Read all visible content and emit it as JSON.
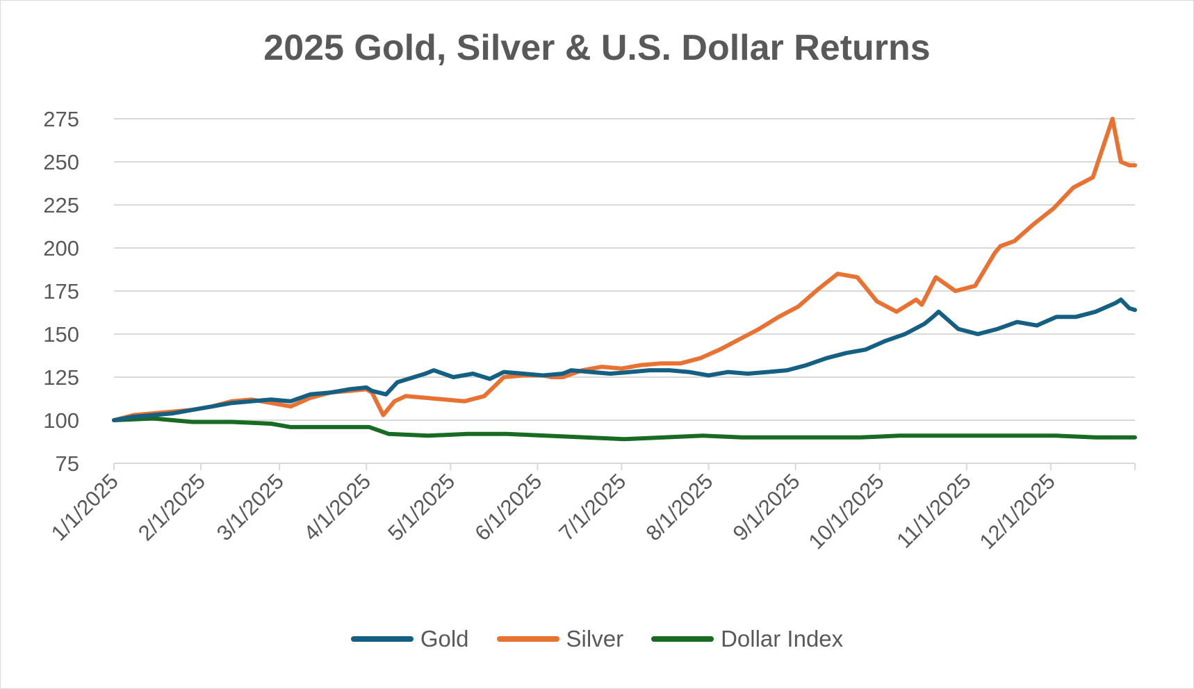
{
  "chart_data": {
    "type": "line",
    "title": "2025 Gold, Silver & U.S. Dollar Returns",
    "xlabel": "",
    "ylabel": "",
    "ylim": [
      75,
      275
    ],
    "yticks": [
      "75",
      "100",
      "125",
      "150",
      "175",
      "200",
      "225",
      "250",
      "275"
    ],
    "xlim": [
      "1/1/2025",
      "12/31/2025"
    ],
    "xticks": [
      "1/1/2025",
      "2/1/2025",
      "3/1/2025",
      "4/1/2025",
      "5/1/2025",
      "6/1/2025",
      "7/1/2025",
      "8/1/2025",
      "9/1/2025",
      "10/1/2025",
      "11/1/2025",
      "12/1/2025"
    ],
    "grid": "horizontal",
    "legend_position": "bottom",
    "series": [
      {
        "name": "Gold",
        "color": "#156082",
        "x": [
          "1/1/2025",
          "1/8/2025",
          "1/15/2025",
          "1/22/2025",
          "1/29/2025",
          "2/5/2025",
          "2/12/2025",
          "2/19/2025",
          "2/26/2025",
          "3/5/2025",
          "3/12/2025",
          "3/19/2025",
          "3/26/2025",
          "4/1/2025",
          "4/3/2025",
          "4/8/2025",
          "4/12/2025",
          "4/22/2025",
          "4/25/2025",
          "5/2/2025",
          "5/9/2025",
          "5/15/2025",
          "5/20/2025",
          "5/27/2025",
          "6/3/2025",
          "6/10/2025",
          "6/13/2025",
          "6/20/2025",
          "6/27/2025",
          "7/4/2025",
          "7/11/2025",
          "7/18/2025",
          "7/25/2025",
          "8/1/2025",
          "8/8/2025",
          "8/15/2025",
          "8/22/2025",
          "8/29/2025",
          "9/5/2025",
          "9/12/2025",
          "9/19/2025",
          "9/26/2025",
          "10/3/2025",
          "10/10/2025",
          "10/17/2025",
          "10/20/2025",
          "10/22/2025",
          "10/29/2025",
          "11/5/2025",
          "11/12/2025",
          "11/19/2025",
          "11/26/2025",
          "12/3/2025",
          "12/10/2025",
          "12/17/2025",
          "12/24/2025",
          "12/26/2025",
          "12/29/2025",
          "12/31/2025"
        ],
        "values": [
          100,
          102,
          103,
          104,
          106,
          108,
          110,
          111,
          112,
          111,
          115,
          116,
          118,
          119,
          117,
          115,
          122,
          127,
          129,
          125,
          127,
          124,
          128,
          127,
          126,
          127,
          129,
          128,
          127,
          128,
          129,
          129,
          128,
          126,
          128,
          127,
          128,
          129,
          132,
          136,
          139,
          141,
          146,
          150,
          156,
          160,
          163,
          153,
          150,
          153,
          157,
          155,
          160,
          160,
          163,
          168,
          170,
          165,
          164
        ]
      },
      {
        "name": "Silver",
        "color": "#E97132",
        "x": [
          "1/1/2025",
          "1/8/2025",
          "1/15/2025",
          "1/22/2025",
          "1/29/2025",
          "2/5/2025",
          "2/12/2025",
          "2/19/2025",
          "2/26/2025",
          "3/5/2025",
          "3/12/2025",
          "3/19/2025",
          "3/26/2025",
          "4/1/2025",
          "4/3/2025",
          "4/7/2025",
          "4/11/2025",
          "4/15/2025",
          "4/22/2025",
          "4/29/2025",
          "5/6/2025",
          "5/13/2025",
          "5/20/2025",
          "5/27/2025",
          "6/3/2025",
          "6/6/2025",
          "6/10/2025",
          "6/17/2025",
          "6/24/2025",
          "7/1/2025",
          "7/8/2025",
          "7/15/2025",
          "7/22/2025",
          "7/29/2025",
          "8/5/2025",
          "8/12/2025",
          "8/19/2025",
          "8/26/2025",
          "9/2/2025",
          "9/9/2025",
          "9/16/2025",
          "9/23/2025",
          "9/30/2025",
          "10/7/2025",
          "10/14/2025",
          "10/16/2025",
          "10/21/2025",
          "10/28/2025",
          "11/4/2025",
          "11/11/2025",
          "11/13/2025",
          "11/18/2025",
          "11/25/2025",
          "12/2/2025",
          "12/9/2025",
          "12/16/2025",
          "12/23/2025",
          "12/26/2025",
          "12/29/2025",
          "12/31/2025"
        ],
        "values": [
          100,
          103,
          104,
          105,
          106,
          108,
          111,
          112,
          110,
          108,
          113,
          116,
          117,
          118,
          116,
          103,
          111,
          114,
          113,
          112,
          111,
          114,
          125,
          126,
          126,
          125,
          125,
          129,
          131,
          130,
          132,
          133,
          133,
          136,
          141,
          147,
          153,
          160,
          166,
          176,
          185,
          183,
          169,
          163,
          170,
          167,
          183,
          175,
          178,
          197,
          201,
          204,
          214,
          223,
          235,
          241,
          275,
          250,
          248,
          248
        ]
      },
      {
        "name": "Dollar Index",
        "color": "#196B24",
        "x": [
          "1/1/2025",
          "1/15/2025",
          "1/29/2025",
          "2/12/2025",
          "2/26/2025",
          "3/5/2025",
          "3/19/2025",
          "4/2/2025",
          "4/9/2025",
          "4/23/2025",
          "5/7/2025",
          "5/21/2025",
          "6/4/2025",
          "6/18/2025",
          "7/2/2025",
          "7/16/2025",
          "7/30/2025",
          "8/13/2025",
          "8/27/2025",
          "9/10/2025",
          "9/24/2025",
          "10/8/2025",
          "10/22/2025",
          "11/5/2025",
          "11/19/2025",
          "12/3/2025",
          "12/17/2025",
          "12/31/2025"
        ],
        "values": [
          100,
          101,
          99,
          99,
          98,
          96,
          96,
          96,
          92,
          91,
          92,
          92,
          91,
          90,
          89,
          90,
          91,
          90,
          90,
          90,
          90,
          91,
          91,
          91,
          91,
          91,
          90,
          90
        ]
      }
    ]
  }
}
